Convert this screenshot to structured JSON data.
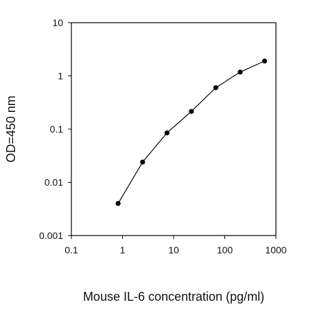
{
  "chart_data": {
    "type": "line",
    "title": "",
    "xlabel": "Mouse IL-6 concentration (pg/ml)",
    "ylabel": "OD=450 nm",
    "xscale": "log",
    "yscale": "log",
    "xlim": [
      0.1,
      1000
    ],
    "ylim": [
      0.001,
      10
    ],
    "xticks": [
      0.1,
      1,
      10,
      100,
      1000
    ],
    "xtick_labels": [
      "0.1",
      "1",
      "10",
      "100",
      "1000"
    ],
    "yticks": [
      0.001,
      0.01,
      0.1,
      1,
      10
    ],
    "ytick_labels": [
      "0.001",
      "0.01",
      "0.1",
      "1",
      "10"
    ],
    "grid": false,
    "legend": false,
    "series": [
      {
        "x": [
          0.82,
          2.47,
          7.41,
          22.2,
          66.7,
          200,
          600
        ],
        "y": [
          0.004,
          0.024,
          0.085,
          0.215,
          0.6,
          1.18,
          1.9
        ]
      }
    ],
    "colors": {
      "line": "#000000",
      "marker": "#000000",
      "axis": "#000000"
    }
  }
}
